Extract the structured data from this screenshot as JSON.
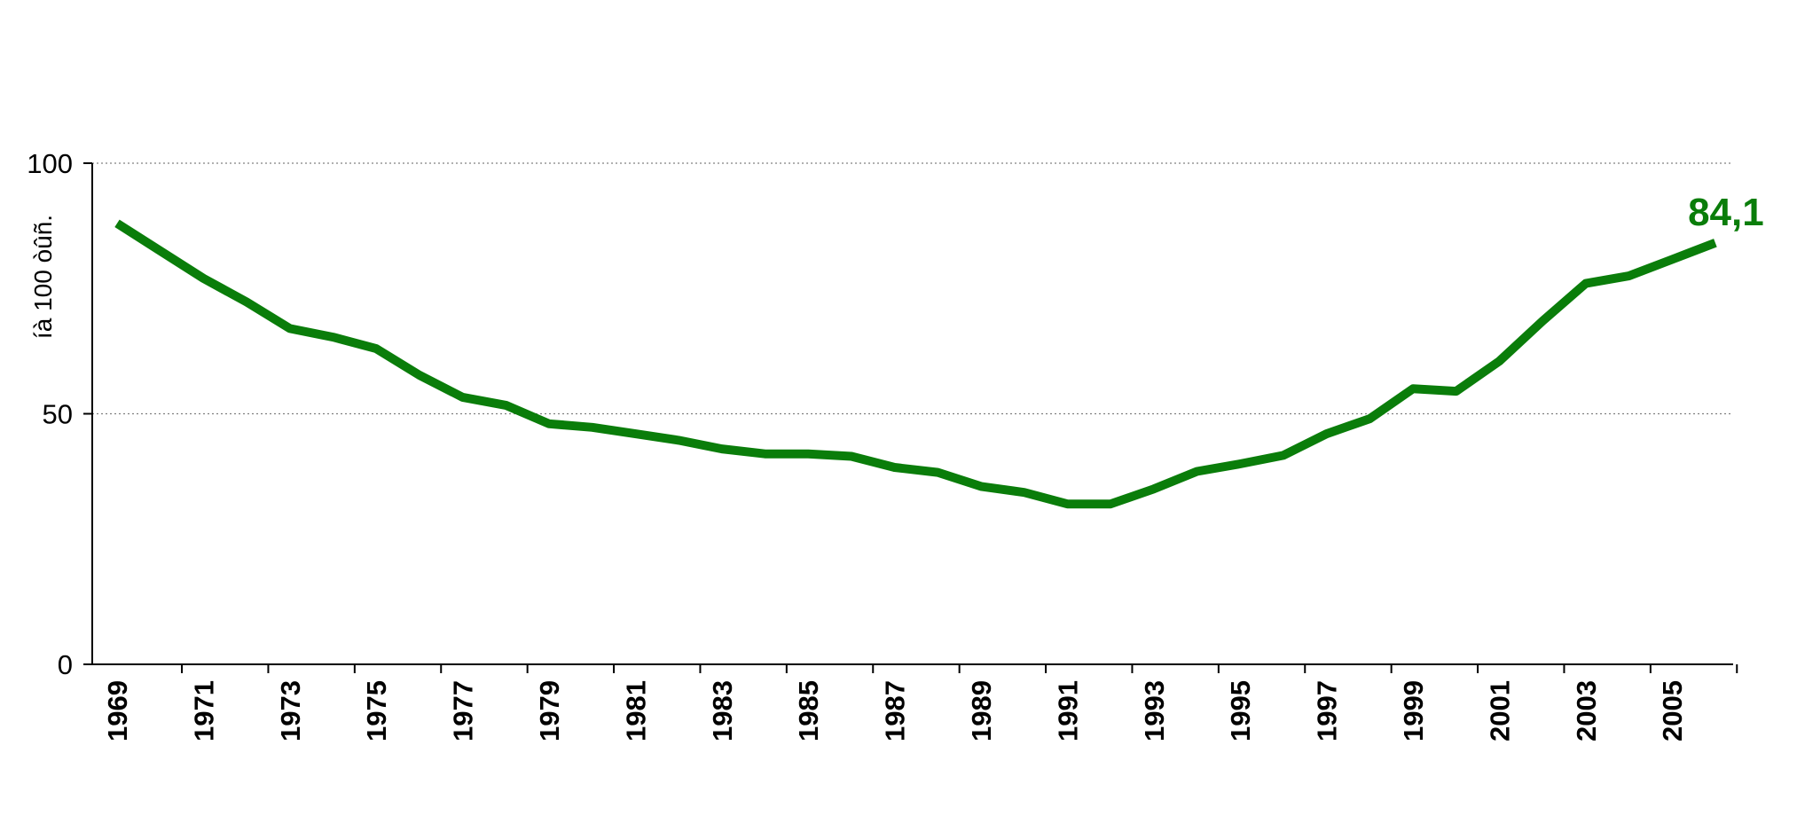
{
  "chart_data": {
    "type": "line",
    "title": "",
    "xlabel": "",
    "ylabel": "íà 100 òûñ.",
    "x": [
      1969,
      1970,
      1971,
      1972,
      1973,
      1974,
      1975,
      1976,
      1977,
      1978,
      1979,
      1980,
      1981,
      1982,
      1983,
      1984,
      1985,
      1986,
      1987,
      1988,
      1989,
      1990,
      1991,
      1992,
      1993,
      1994,
      1995,
      1996,
      1997,
      1998,
      1999,
      2000,
      2001,
      2002,
      2003,
      2004,
      2005,
      2006
    ],
    "x_tick_labels": [
      "1969",
      "1971",
      "1973",
      "1975",
      "1977",
      "1979",
      "1981",
      "1983",
      "1985",
      "1987",
      "1989",
      "1991",
      "1993",
      "1995",
      "1997",
      "1999",
      "2001",
      "2003",
      "2005"
    ],
    "series": [
      {
        "values": [
          88.0,
          82.5,
          77.0,
          72.3,
          67.0,
          65.3,
          63.0,
          57.7,
          53.3,
          51.7,
          48.0,
          47.3,
          46.0,
          44.7,
          43.0,
          42.0,
          42.0,
          41.5,
          39.3,
          38.3,
          35.5,
          34.3,
          32.0,
          32.0,
          35.0,
          38.5,
          40.0,
          41.7,
          46.0,
          49.0,
          55.0,
          54.5,
          60.5,
          68.5,
          76.0,
          77.5,
          80.8,
          84.1
        ],
        "color": "#0a7d0a"
      }
    ],
    "ylim": [
      0,
      100
    ],
    "y_ticks": [
      0,
      50,
      100
    ],
    "y_tick_labels": [
      "0",
      "50",
      "100"
    ],
    "grid": "horizontal dotted",
    "legend": "none",
    "annotations": [
      {
        "text": "84,1",
        "x": 2006,
        "y": 84.1,
        "color": "#0a7d0a"
      }
    ]
  }
}
